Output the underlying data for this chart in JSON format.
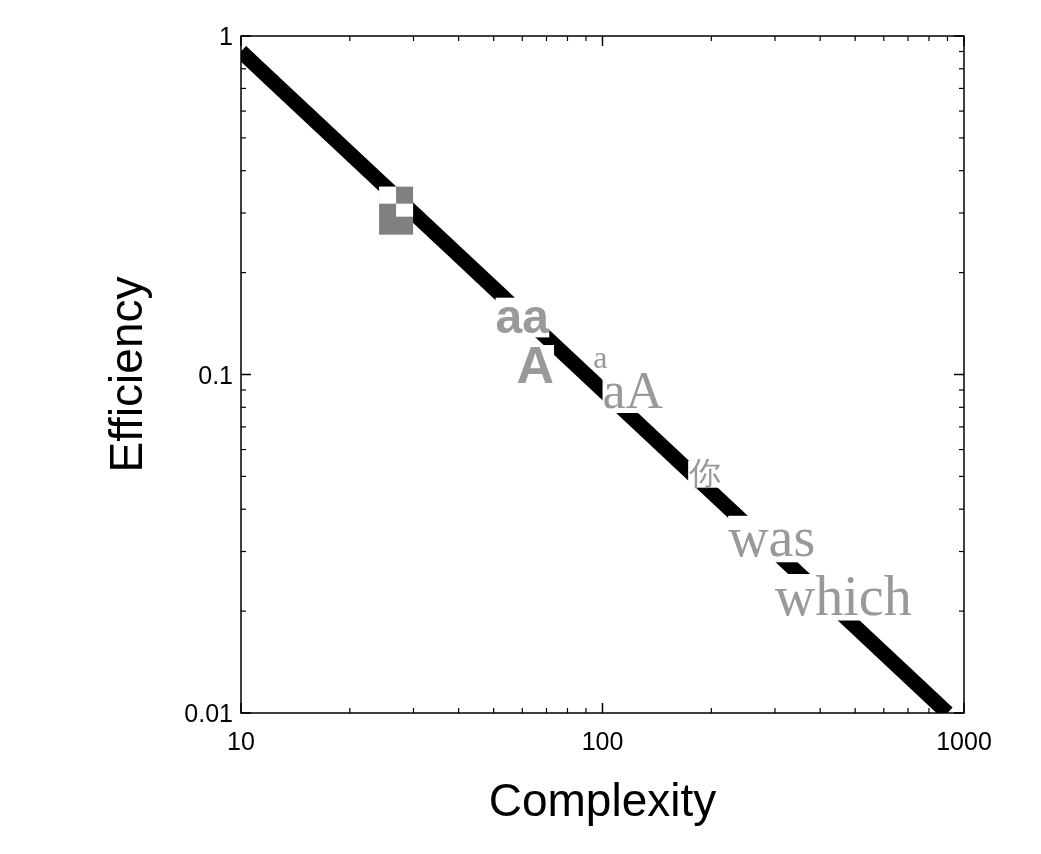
{
  "chart_data": {
    "type": "line",
    "xlabel": "Complexity",
    "ylabel": "Efficiency",
    "log": "xy",
    "xlim": [
      10,
      1000
    ],
    "xticks": [
      10,
      100,
      1000
    ],
    "ylim": [
      0.01,
      1
    ],
    "yticks": [
      {
        "value": 0.01,
        "label": "0.01"
      },
      {
        "value": 0.1,
        "label": "0.1"
      },
      1
    ],
    "series": [
      {
        "color": "#000000",
        "x": [
          10,
          900
        ],
        "values": [
          0.9,
          0.01
        ]
      }
    ],
    "annotations": [
      "aa",
      "A",
      "a",
      "aA",
      "你",
      "was",
      "which"
    ]
  }
}
